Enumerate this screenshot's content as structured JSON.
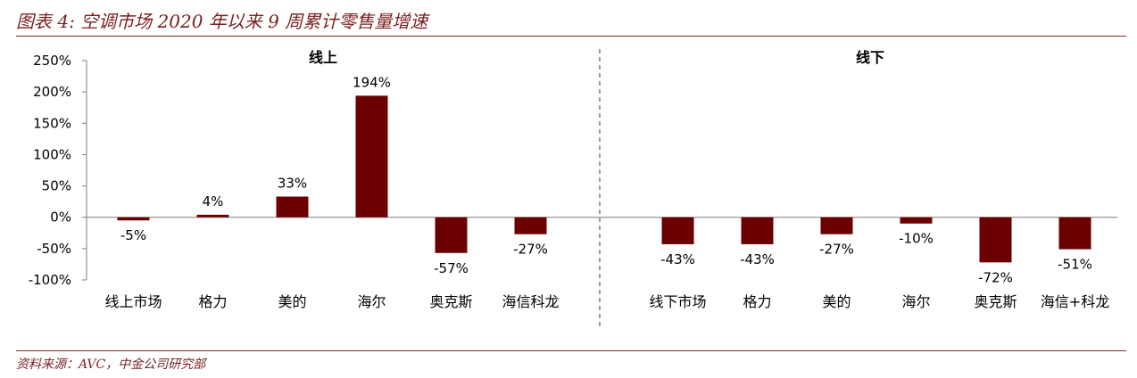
{
  "header": {
    "title": "图表 4:  空调市场 2020 年以来 9 周累计零售量增速"
  },
  "footer": {
    "source": "资料来源：AVC，中金公司研究部"
  },
  "colors": {
    "bar": "#6b0000",
    "title_accent": "#7a1f1f"
  },
  "chart_data": {
    "type": "bar",
    "title": "图表 4:  空调市场 2020 年以来 9 周累计零售量增速",
    "ylabel": "",
    "xlabel": "",
    "ylim": [
      -100,
      250
    ],
    "yticks": [
      "250%",
      "200%",
      "150%",
      "100%",
      "50%",
      "0%",
      "-50%",
      "-100%"
    ],
    "ytick_values": [
      250,
      200,
      150,
      100,
      50,
      0,
      -50,
      -100
    ],
    "unit": "%",
    "grid": false,
    "legend": "none",
    "panels": [
      {
        "label": "线上",
        "categories": [
          "线上市场",
          "格力",
          "美的",
          "海尔",
          "奥克斯",
          "海信科龙"
        ],
        "values": [
          -5,
          4,
          33,
          194,
          -57,
          -27
        ],
        "data_labels": [
          "-5%",
          "4%",
          "33%",
          "194%",
          "-57%",
          "-27%"
        ]
      },
      {
        "label": "线下",
        "categories": [
          "线下市场",
          "格力",
          "美的",
          "海尔",
          "奥克斯",
          "海信+科龙"
        ],
        "values": [
          -43,
          -43,
          -27,
          -10,
          -72,
          -51
        ],
        "data_labels": [
          "-43%",
          "-43%",
          "-27%",
          "-10%",
          "-72%",
          "-51%"
        ]
      }
    ]
  }
}
